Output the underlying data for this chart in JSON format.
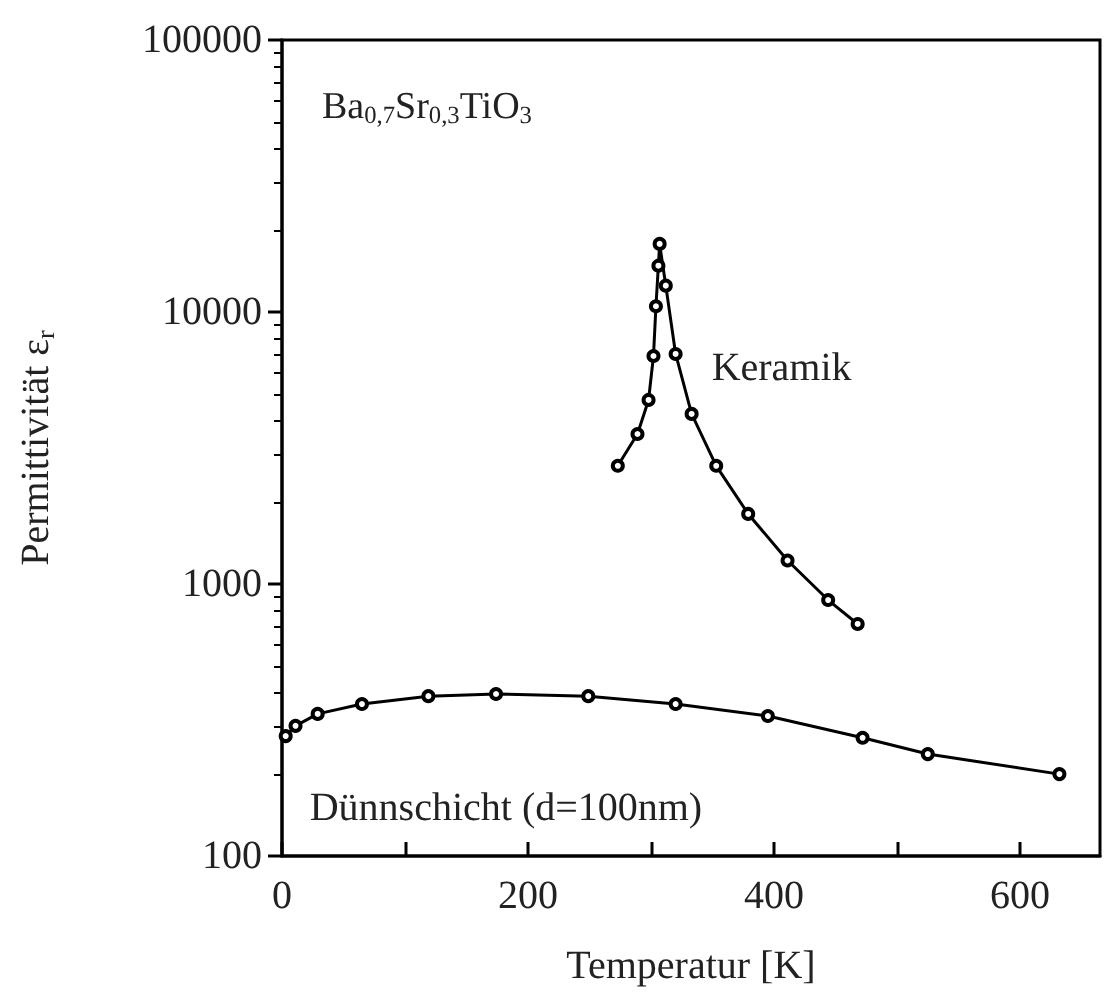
{
  "chart_data": {
    "type": "line",
    "title": "Ba$_{0,7}$Sr$_{0,3}$TiO$_{3}$",
    "xlabel": "Temperatur [K]",
    "ylabel": "Permittivität ε$_{r}$",
    "log": "y",
    "xlim": [
      0,
      665
    ],
    "ylim": [
      100,
      100000
    ],
    "xticks": [
      0,
      {
        "value": 100,
        "label": null
      },
      200,
      {
        "value": 300,
        "label": null
      },
      400,
      {
        "value": 500,
        "label": null
      },
      600
    ],
    "yticks": [
      100,
      1000,
      10000,
      100000
    ],
    "marker": "circle",
    "line_style": "solid",
    "legend": false,
    "grid": false,
    "series": [
      {
        "name": "Keramik",
        "color": "#000000",
        "x": [
          273,
          289,
          298,
          302,
          304,
          306,
          307,
          312,
          320,
          333,
          353,
          379,
          411,
          444,
          468
        ],
        "values": [
          2720,
          3560,
          4750,
          6890,
          10500,
          14800,
          17800,
          12500,
          7010,
          4220,
          2720,
          1810,
          1220,
          873,
          713
        ]
      },
      {
        "name": "Dünnschicht (d=100nm)",
        "color": "#000000",
        "x": [
          3,
          11,
          29,
          65,
          119,
          174,
          249,
          320,
          395,
          472,
          525,
          632
        ],
        "values": [
          276,
          301,
          333,
          362,
          387,
          394,
          387,
          362,
          327,
          272,
          237,
          200
        ]
      }
    ]
  }
}
